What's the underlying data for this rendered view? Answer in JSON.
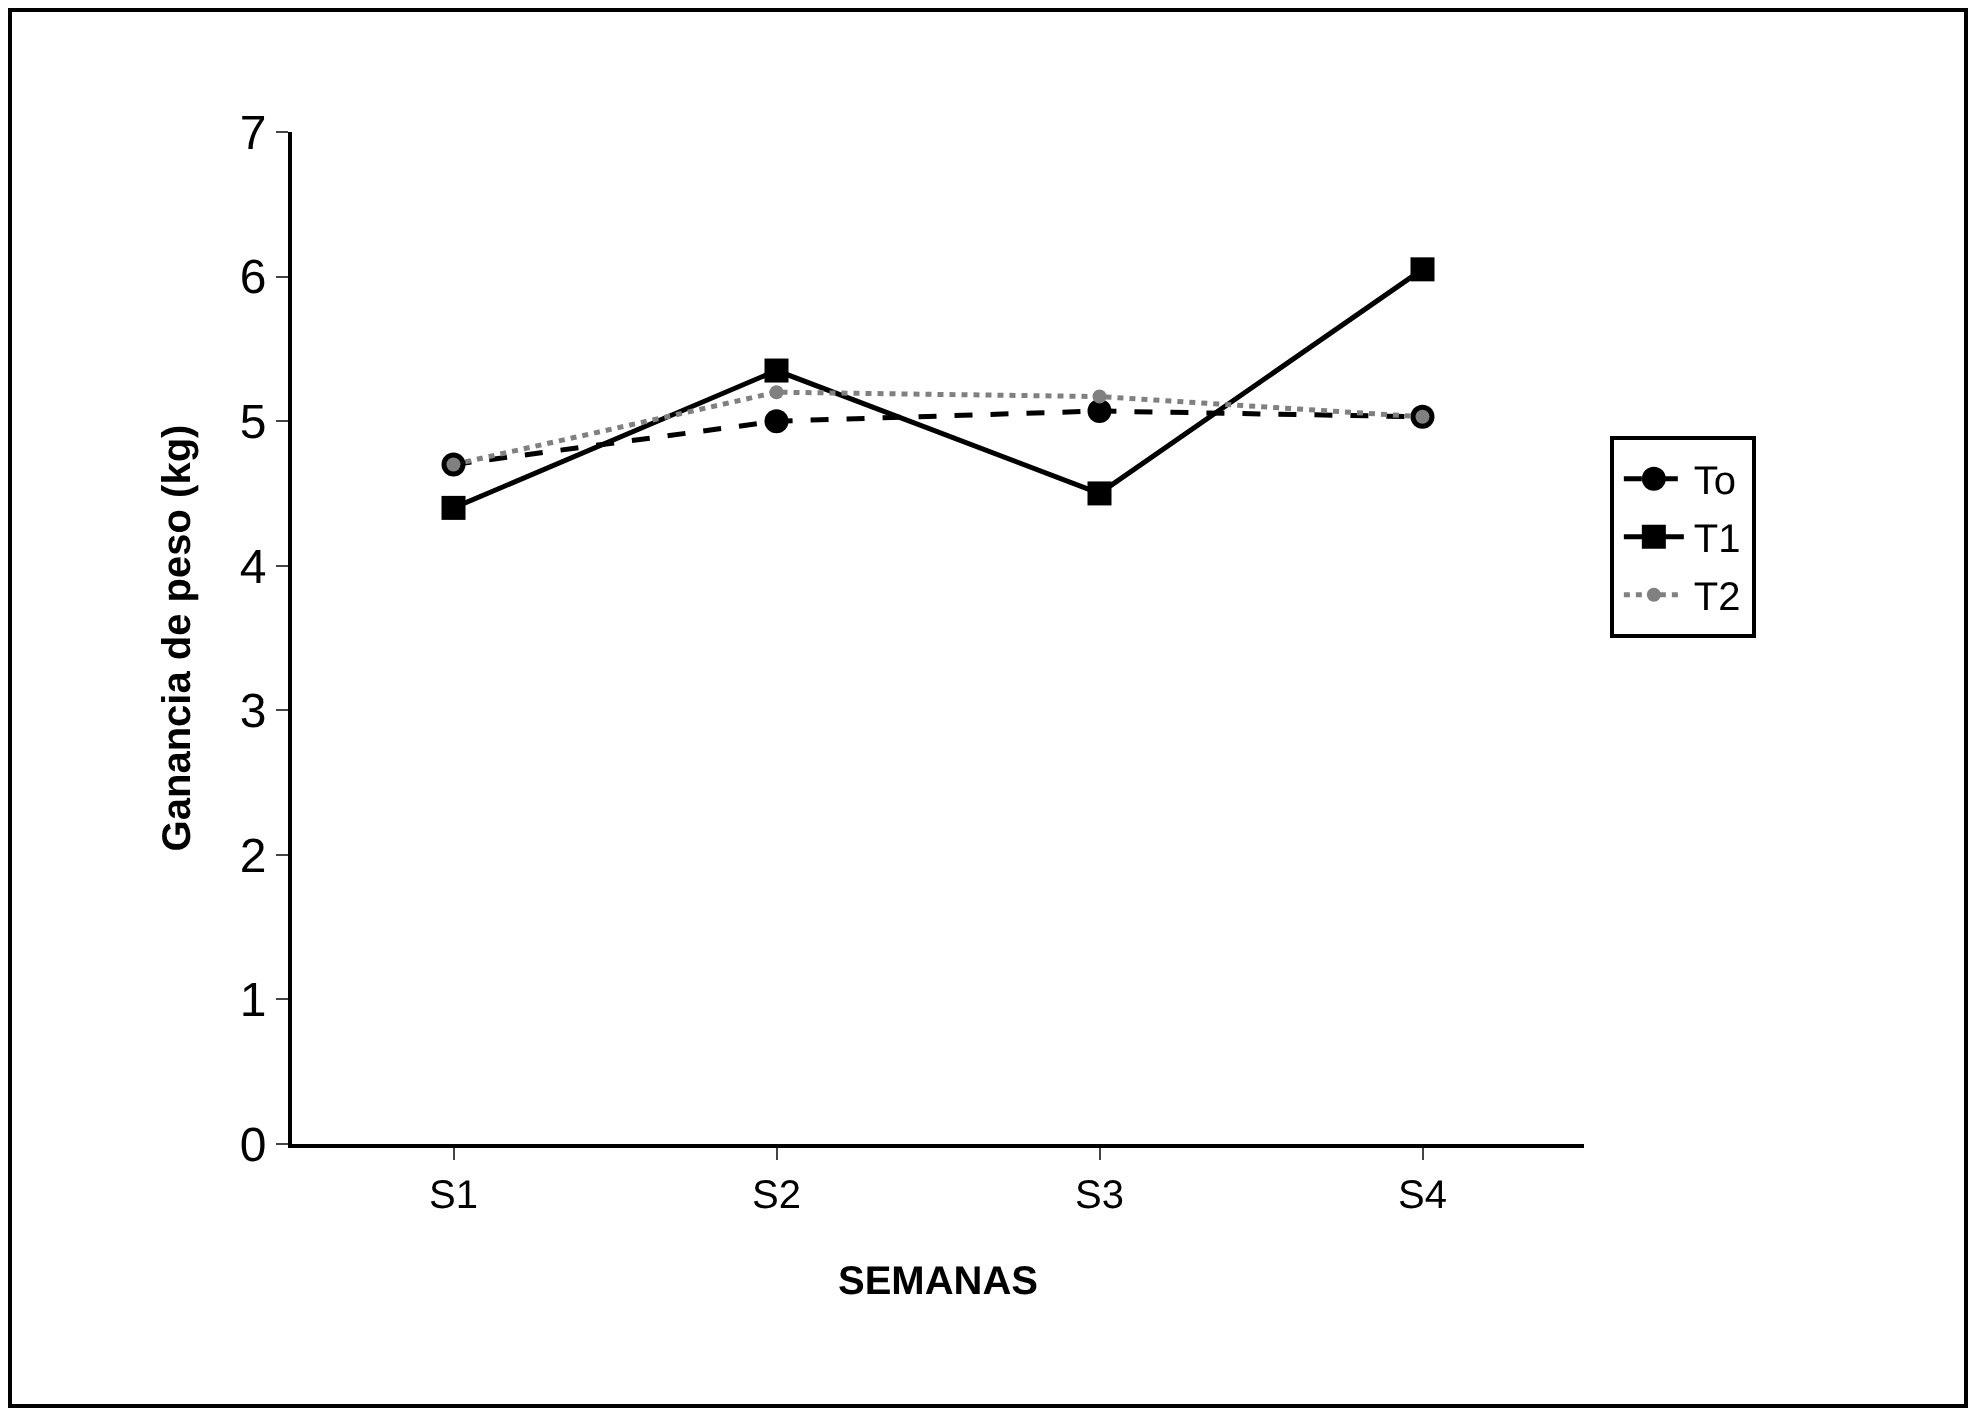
{
  "chart_data": {
    "type": "line",
    "xlabel": "SEMANAS",
    "ylabel": "Ganancia de peso (kg)",
    "categories": [
      "S1",
      "S2",
      "S3",
      "S4"
    ],
    "series": [
      {
        "name": "To",
        "color": "#000000",
        "values": [
          4.7,
          5.0,
          5.07,
          5.03
        ],
        "marker": "circle",
        "line_style": "dashed"
      },
      {
        "name": "T1",
        "color": "#000000",
        "values": [
          4.4,
          5.35,
          4.5,
          6.05
        ],
        "marker": "square",
        "line_style": "solid"
      },
      {
        "name": "T2",
        "color": "#808080",
        "values": [
          4.7,
          5.2,
          5.17,
          5.03
        ],
        "marker": "circle",
        "line_style": "dotted"
      }
    ],
    "ylim": [
      0,
      7
    ],
    "yticks": [
      0,
      1,
      2,
      3,
      4,
      5,
      6,
      7
    ],
    "grid": false,
    "legend": "right"
  }
}
